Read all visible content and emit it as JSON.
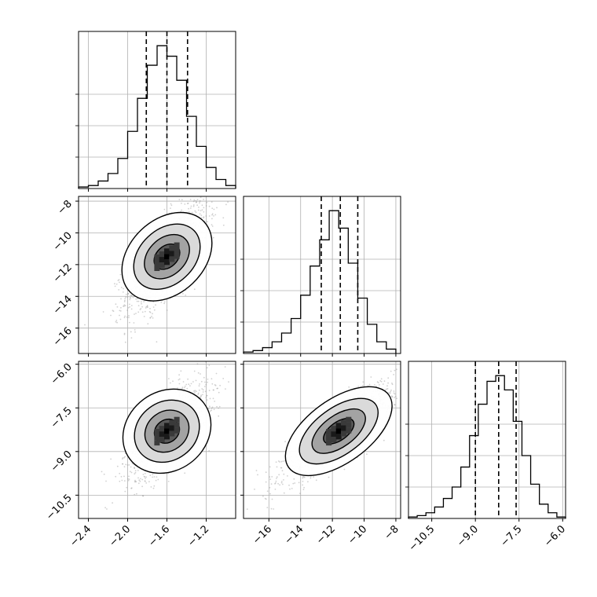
{
  "chart_data": {
    "type": "corner",
    "grid": true,
    "parameters": [
      {
        "range": [
          -2.5,
          -0.9
        ],
        "ticks": [
          -2.4,
          -2.0,
          -1.6,
          -1.2
        ],
        "tick_labels": [
          "−2.4",
          "−2.0",
          "−1.6",
          "−1.2"
        ]
      },
      {
        "range": [
          -17.6,
          -7.7
        ],
        "ticks": [
          -16,
          -14,
          -12,
          -10,
          -8
        ],
        "tick_labels": [
          "−16",
          "−14",
          "−12",
          "−10",
          "−8"
        ]
      },
      {
        "range": [
          -11.3,
          -5.9
        ],
        "ticks": [
          -10.5,
          -9.0,
          -7.5,
          -6.0
        ],
        "tick_labels": [
          "−10.5",
          "−9.0",
          "−7.5",
          "−6.0"
        ]
      }
    ],
    "panel_ticks": {
      "row1_y": {
        "ticks": [
          -16,
          -14,
          -12,
          -10,
          -8
        ],
        "tick_labels": [
          "−16",
          "−14",
          "−12",
          "−10",
          "−8"
        ]
      },
      "row2_y": {
        "ticks": [
          -10.5,
          -9.0,
          -7.5,
          -6.0
        ],
        "tick_labels": [
          "−10.5",
          "−9.0",
          "−7.5",
          "−6.0"
        ]
      }
    },
    "histograms": [
      {
        "param": 0,
        "quantiles": [
          -1.81,
          -1.6,
          -1.39
        ],
        "bin_edges": [
          -2.5,
          -2.4,
          -2.3,
          -2.2,
          -2.1,
          -2.0,
          -1.9,
          -1.8,
          -1.7,
          -1.6,
          -1.5,
          -1.4,
          -1.3,
          -1.2,
          -1.1,
          -1.0,
          -0.9
        ],
        "counts": [
          0.01,
          0.02,
          0.05,
          0.1,
          0.2,
          0.38,
          0.6,
          0.82,
          0.95,
          0.88,
          0.72,
          0.48,
          0.28,
          0.14,
          0.06,
          0.02
        ]
      },
      {
        "param": 1,
        "quantiles": [
          -12.7,
          -11.5,
          -10.4
        ],
        "bin_edges": [
          -17.6,
          -17.0,
          -16.4,
          -15.8,
          -15.2,
          -14.6,
          -14.0,
          -13.4,
          -12.8,
          -12.2,
          -11.6,
          -11.0,
          -10.4,
          -9.8,
          -9.2,
          -8.6,
          -8.0
        ],
        "counts": [
          0.01,
          0.02,
          0.04,
          0.08,
          0.14,
          0.24,
          0.4,
          0.6,
          0.78,
          0.98,
          0.86,
          0.62,
          0.38,
          0.2,
          0.08,
          0.03
        ]
      },
      {
        "param": 2,
        "quantiles": [
          -9.0,
          -8.2,
          -7.6
        ],
        "bin_edges": [
          -11.3,
          -11.0,
          -10.7,
          -10.4,
          -10.1,
          -9.8,
          -9.5,
          -9.2,
          -8.9,
          -8.6,
          -8.3,
          -8.0,
          -7.7,
          -7.4,
          -7.1,
          -6.8,
          -6.5,
          -6.2,
          -5.9
        ],
        "counts": [
          0.01,
          0.02,
          0.04,
          0.08,
          0.14,
          0.22,
          0.36,
          0.58,
          0.8,
          0.96,
          1.0,
          0.9,
          0.68,
          0.44,
          0.24,
          0.1,
          0.04,
          0.01
        ]
      }
    ],
    "joint": [
      {
        "x_param": 0,
        "y_param": 1,
        "center": [
          -1.6,
          -11.5
        ],
        "sd": [
          0.18,
          1.5
        ],
        "corr": 0.7
      },
      {
        "x_param": 0,
        "y_param": 2,
        "center": [
          -1.6,
          -8.3
        ],
        "sd": [
          0.18,
          0.7
        ],
        "corr": 0.65
      },
      {
        "x_param": 1,
        "y_param": 2,
        "center": [
          -11.6,
          -8.3
        ],
        "sd": [
          1.5,
          0.7
        ],
        "corr": 0.85
      }
    ],
    "colors": {
      "line": "#000000",
      "grid": "#b0b0b0",
      "scatter": "#9a9a9a"
    }
  }
}
